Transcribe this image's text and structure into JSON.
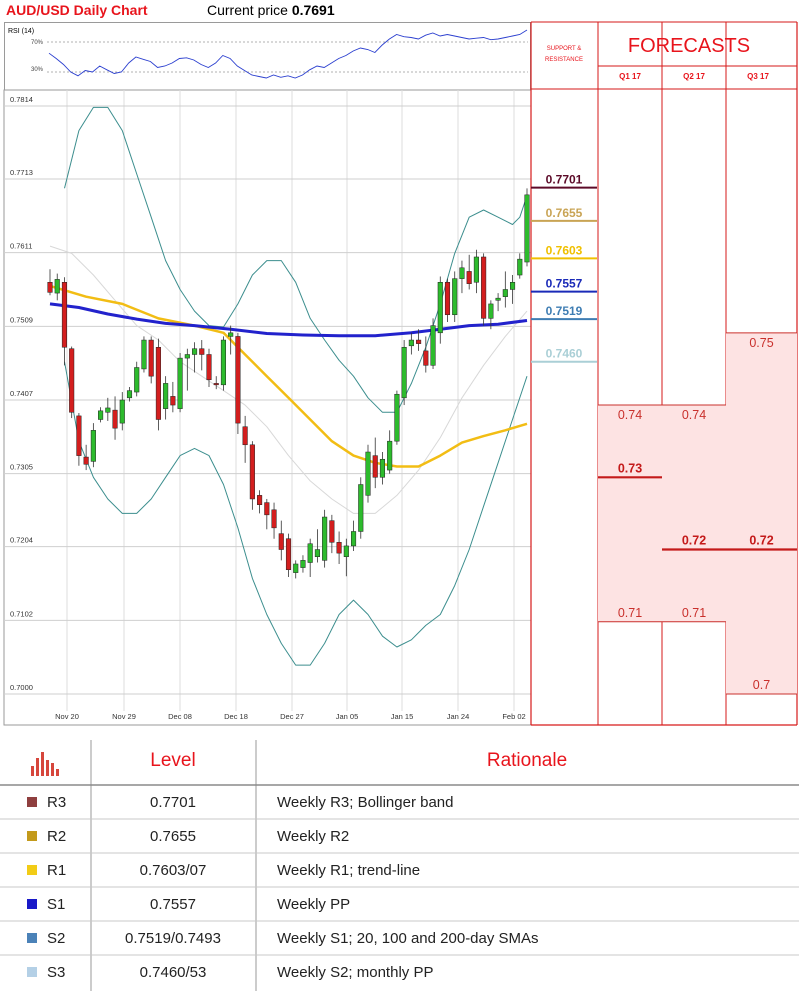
{
  "header": {
    "title": "AUD/USD Daily Chart",
    "price_label": "Current price",
    "price_value": "0.7691"
  },
  "rsi": {
    "label": "RSI (14)",
    "upper": "70%",
    "lower": "30%"
  },
  "chart_data": [
    {
      "type": "candlestick",
      "y_ticks": [
        "0.7814",
        "0.7713",
        "0.7611",
        "0.7509",
        "0.7407",
        "0.7305",
        "0.7204",
        "0.7102",
        "0.7000"
      ],
      "x_ticks": [
        "Nov 20",
        "Nov 29",
        "Dec 08",
        "Dec 18",
        "Dec 27",
        "Jan 05",
        "Jan 15",
        "Jan 24",
        "Feb 02"
      ],
      "ylim": [
        0.7,
        0.7814
      ],
      "candles": [
        {
          "o": 0.757,
          "h": 0.7588,
          "l": 0.7552,
          "c": 0.7556
        },
        {
          "o": 0.7555,
          "h": 0.7582,
          "l": 0.7545,
          "c": 0.7574
        },
        {
          "o": 0.757,
          "h": 0.7577,
          "l": 0.7455,
          "c": 0.748
        },
        {
          "o": 0.7478,
          "h": 0.7481,
          "l": 0.7382,
          "c": 0.739
        },
        {
          "o": 0.7385,
          "h": 0.7389,
          "l": 0.7316,
          "c": 0.733
        },
        {
          "o": 0.7328,
          "h": 0.7345,
          "l": 0.731,
          "c": 0.7318
        },
        {
          "o": 0.7322,
          "h": 0.7375,
          "l": 0.7314,
          "c": 0.7365
        },
        {
          "o": 0.738,
          "h": 0.7397,
          "l": 0.7376,
          "c": 0.7392
        },
        {
          "o": 0.739,
          "h": 0.741,
          "l": 0.7378,
          "c": 0.7396
        },
        {
          "o": 0.7393,
          "h": 0.7412,
          "l": 0.7352,
          "c": 0.7368
        },
        {
          "o": 0.7375,
          "h": 0.7418,
          "l": 0.7365,
          "c": 0.7407
        },
        {
          "o": 0.741,
          "h": 0.7425,
          "l": 0.7405,
          "c": 0.742
        },
        {
          "o": 0.7418,
          "h": 0.746,
          "l": 0.7412,
          "c": 0.7452
        },
        {
          "o": 0.745,
          "h": 0.7495,
          "l": 0.7445,
          "c": 0.749
        },
        {
          "o": 0.749,
          "h": 0.7495,
          "l": 0.743,
          "c": 0.744
        },
        {
          "o": 0.748,
          "h": 0.7492,
          "l": 0.7365,
          "c": 0.738
        },
        {
          "o": 0.7395,
          "h": 0.744,
          "l": 0.738,
          "c": 0.743
        },
        {
          "o": 0.7412,
          "h": 0.7432,
          "l": 0.739,
          "c": 0.74
        },
        {
          "o": 0.7395,
          "h": 0.7472,
          "l": 0.739,
          "c": 0.7465
        },
        {
          "o": 0.7465,
          "h": 0.7478,
          "l": 0.742,
          "c": 0.747
        },
        {
          "o": 0.747,
          "h": 0.7487,
          "l": 0.7445,
          "c": 0.7478
        },
        {
          "o": 0.7478,
          "h": 0.749,
          "l": 0.7448,
          "c": 0.747
        },
        {
          "o": 0.747,
          "h": 0.7478,
          "l": 0.7425,
          "c": 0.7435
        },
        {
          "o": 0.743,
          "h": 0.744,
          "l": 0.7422,
          "c": 0.7428
        },
        {
          "o": 0.7428,
          "h": 0.7495,
          "l": 0.742,
          "c": 0.749
        },
        {
          "o": 0.7495,
          "h": 0.751,
          "l": 0.747,
          "c": 0.75
        },
        {
          "o": 0.7495,
          "h": 0.75,
          "l": 0.736,
          "c": 0.7375
        },
        {
          "o": 0.737,
          "h": 0.7385,
          "l": 0.732,
          "c": 0.7345
        },
        {
          "o": 0.7345,
          "h": 0.735,
          "l": 0.7255,
          "c": 0.727
        },
        {
          "o": 0.7275,
          "h": 0.7282,
          "l": 0.725,
          "c": 0.7262
        },
        {
          "o": 0.7265,
          "h": 0.727,
          "l": 0.7228,
          "c": 0.7248
        },
        {
          "o": 0.7255,
          "h": 0.7265,
          "l": 0.7215,
          "c": 0.723
        },
        {
          "o": 0.7222,
          "h": 0.724,
          "l": 0.7185,
          "c": 0.72
        },
        {
          "o": 0.7215,
          "h": 0.7222,
          "l": 0.7162,
          "c": 0.7172
        },
        {
          "o": 0.7168,
          "h": 0.7185,
          "l": 0.716,
          "c": 0.718
        },
        {
          "o": 0.7175,
          "h": 0.7192,
          "l": 0.7168,
          "c": 0.7185
        },
        {
          "o": 0.7182,
          "h": 0.7215,
          "l": 0.7162,
          "c": 0.7208
        },
        {
          "o": 0.719,
          "h": 0.7228,
          "l": 0.7182,
          "c": 0.72
        },
        {
          "o": 0.7185,
          "h": 0.7255,
          "l": 0.7175,
          "c": 0.7245
        },
        {
          "o": 0.724,
          "h": 0.7248,
          "l": 0.7195,
          "c": 0.721
        },
        {
          "o": 0.721,
          "h": 0.7225,
          "l": 0.718,
          "c": 0.7195
        },
        {
          "o": 0.719,
          "h": 0.7215,
          "l": 0.7163,
          "c": 0.7205
        },
        {
          "o": 0.7205,
          "h": 0.724,
          "l": 0.7198,
          "c": 0.7225
        },
        {
          "o": 0.7225,
          "h": 0.73,
          "l": 0.7215,
          "c": 0.729
        },
        {
          "o": 0.7275,
          "h": 0.7345,
          "l": 0.7265,
          "c": 0.7335
        },
        {
          "o": 0.733,
          "h": 0.7355,
          "l": 0.7285,
          "c": 0.73
        },
        {
          "o": 0.73,
          "h": 0.7335,
          "l": 0.729,
          "c": 0.7325
        },
        {
          "o": 0.731,
          "h": 0.7365,
          "l": 0.7305,
          "c": 0.735
        },
        {
          "o": 0.735,
          "h": 0.742,
          "l": 0.7345,
          "c": 0.7415
        },
        {
          "o": 0.741,
          "h": 0.749,
          "l": 0.74,
          "c": 0.748
        },
        {
          "o": 0.7482,
          "h": 0.75,
          "l": 0.747,
          "c": 0.749
        },
        {
          "o": 0.749,
          "h": 0.7505,
          "l": 0.7475,
          "c": 0.7485
        },
        {
          "o": 0.7475,
          "h": 0.7495,
          "l": 0.7445,
          "c": 0.7455
        },
        {
          "o": 0.7455,
          "h": 0.752,
          "l": 0.745,
          "c": 0.751
        },
        {
          "o": 0.75,
          "h": 0.7578,
          "l": 0.7485,
          "c": 0.757
        },
        {
          "o": 0.757,
          "h": 0.7575,
          "l": 0.7515,
          "c": 0.7525
        },
        {
          "o": 0.7525,
          "h": 0.7585,
          "l": 0.7515,
          "c": 0.7575
        },
        {
          "o": 0.7575,
          "h": 0.76,
          "l": 0.7555,
          "c": 0.759
        },
        {
          "o": 0.7585,
          "h": 0.7608,
          "l": 0.756,
          "c": 0.7568
        },
        {
          "o": 0.757,
          "h": 0.7615,
          "l": 0.7555,
          "c": 0.7605
        },
        {
          "o": 0.7605,
          "h": 0.761,
          "l": 0.751,
          "c": 0.752
        },
        {
          "o": 0.752,
          "h": 0.7545,
          "l": 0.7505,
          "c": 0.754
        },
        {
          "o": 0.7545,
          "h": 0.7555,
          "l": 0.753,
          "c": 0.7548
        },
        {
          "o": 0.755,
          "h": 0.7585,
          "l": 0.7535,
          "c": 0.756
        },
        {
          "o": 0.756,
          "h": 0.758,
          "l": 0.754,
          "c": 0.757
        },
        {
          "o": 0.758,
          "h": 0.761,
          "l": 0.7575,
          "c": 0.7602
        },
        {
          "o": 0.7598,
          "h": 0.77,
          "l": 0.7592,
          "c": 0.7691
        }
      ],
      "sma_200": [
        [
          0,
          0.7565
        ],
        [
          5,
          0.755
        ],
        [
          10,
          0.754
        ],
        [
          15,
          0.752
        ],
        [
          20,
          0.751
        ],
        [
          24,
          0.75
        ],
        [
          27,
          0.747
        ],
        [
          30,
          0.744
        ],
        [
          33,
          0.741
        ],
        [
          36,
          0.738
        ],
        [
          39,
          0.735
        ],
        [
          42,
          0.733
        ],
        [
          45,
          0.732
        ],
        [
          48,
          0.7315
        ],
        [
          51,
          0.7315
        ],
        [
          54,
          0.733
        ],
        [
          57,
          0.7348
        ],
        [
          60,
          0.7357
        ],
        [
          63,
          0.7365
        ],
        [
          66,
          0.7374
        ]
      ],
      "sma_100": [
        [
          0,
          0.754
        ],
        [
          4,
          0.7535
        ],
        [
          8,
          0.7526
        ],
        [
          12,
          0.7519
        ],
        [
          16,
          0.7513
        ],
        [
          20,
          0.751
        ],
        [
          25,
          0.7505
        ],
        [
          30,
          0.7499
        ],
        [
          35,
          0.7497
        ],
        [
          40,
          0.7496
        ],
        [
          45,
          0.7496
        ],
        [
          50,
          0.75
        ],
        [
          54,
          0.7505
        ],
        [
          58,
          0.751
        ],
        [
          62,
          0.7512
        ],
        [
          66,
          0.7517
        ]
      ],
      "bollinger_upper": [
        [
          2,
          0.77
        ],
        [
          4,
          0.778
        ],
        [
          6,
          0.7812
        ],
        [
          8,
          0.7812
        ],
        [
          10,
          0.778
        ],
        [
          12,
          0.772
        ],
        [
          14,
          0.766
        ],
        [
          16,
          0.76
        ],
        [
          18,
          0.756
        ],
        [
          20,
          0.753
        ],
        [
          22,
          0.751
        ],
        [
          24,
          0.7508
        ],
        [
          26,
          0.754
        ],
        [
          28,
          0.758
        ],
        [
          30,
          0.76
        ],
        [
          32,
          0.76
        ],
        [
          34,
          0.757
        ],
        [
          36,
          0.752
        ],
        [
          38,
          0.749
        ],
        [
          40,
          0.7462
        ],
        [
          42,
          0.744
        ],
        [
          44,
          0.741
        ],
        [
          46,
          0.739
        ],
        [
          48,
          0.739
        ],
        [
          50,
          0.743
        ],
        [
          52,
          0.748
        ],
        [
          54,
          0.754
        ],
        [
          56,
          0.761
        ],
        [
          58,
          0.766
        ],
        [
          60,
          0.767
        ],
        [
          62,
          0.766
        ],
        [
          64,
          0.765
        ],
        [
          65,
          0.766
        ],
        [
          66,
          0.769
        ]
      ],
      "bollinger_lower": [
        [
          2,
          0.746
        ],
        [
          4,
          0.735
        ],
        [
          6,
          0.73
        ],
        [
          8,
          0.727
        ],
        [
          10,
          0.725
        ],
        [
          12,
          0.725
        ],
        [
          14,
          0.727
        ],
        [
          16,
          0.73
        ],
        [
          18,
          0.733
        ],
        [
          20,
          0.734
        ],
        [
          22,
          0.733
        ],
        [
          24,
          0.729
        ],
        [
          26,
          0.723
        ],
        [
          28,
          0.716
        ],
        [
          30,
          0.711
        ],
        [
          32,
          0.707
        ],
        [
          34,
          0.704
        ],
        [
          36,
          0.704
        ],
        [
          38,
          0.707
        ],
        [
          40,
          0.711
        ],
        [
          42,
          0.713
        ],
        [
          44,
          0.711
        ],
        [
          46,
          0.708
        ],
        [
          48,
          0.7065
        ],
        [
          50,
          0.7075
        ],
        [
          52,
          0.7095
        ],
        [
          54,
          0.711
        ],
        [
          56,
          0.715
        ],
        [
          58,
          0.72
        ],
        [
          60,
          0.726
        ],
        [
          62,
          0.732
        ],
        [
          64,
          0.738
        ],
        [
          66,
          0.744
        ]
      ],
      "sma_20": [
        [
          0,
          0.762
        ],
        [
          3,
          0.761
        ],
        [
          6,
          0.758
        ],
        [
          9,
          0.7545
        ],
        [
          12,
          0.751
        ],
        [
          15,
          0.749
        ],
        [
          18,
          0.746
        ],
        [
          21,
          0.744
        ],
        [
          24,
          0.742
        ],
        [
          27,
          0.74
        ],
        [
          30,
          0.737
        ],
        [
          33,
          0.733
        ],
        [
          36,
          0.7295
        ],
        [
          39,
          0.727
        ],
        [
          42,
          0.725
        ],
        [
          45,
          0.725
        ],
        [
          48,
          0.7275
        ],
        [
          51,
          0.731
        ],
        [
          54,
          0.7355
        ],
        [
          57,
          0.741
        ],
        [
          60,
          0.7455
        ],
        [
          63,
          0.7495
        ],
        [
          66,
          0.753
        ]
      ],
      "rsi_values": [
        0.55,
        0.48,
        0.4,
        0.3,
        0.25,
        0.32,
        0.3,
        0.38,
        0.33,
        0.28,
        0.3,
        0.42,
        0.5,
        0.47,
        0.44,
        0.36,
        0.38,
        0.42,
        0.48,
        0.49,
        0.46,
        0.4,
        0.36,
        0.42,
        0.52,
        0.48,
        0.38,
        0.32,
        0.26,
        0.24,
        0.22,
        0.26,
        0.23,
        0.25,
        0.22,
        0.26,
        0.33,
        0.38,
        0.36,
        0.42,
        0.48,
        0.52,
        0.58,
        0.62,
        0.6,
        0.56,
        0.66,
        0.74,
        0.8,
        0.77,
        0.76,
        0.74,
        0.79,
        0.82,
        0.78,
        0.8,
        0.78,
        0.76,
        0.74,
        0.75,
        0.76,
        0.73,
        0.74,
        0.76,
        0.78,
        0.8,
        0.86
      ]
    },
    {
      "type": "table",
      "title": "FORECASTS",
      "support_resistance_label": "SUPPORT & RESISTANCE",
      "columns": [
        "Q1 17",
        "Q2 17",
        "Q3 17"
      ],
      "levels": [
        {
          "label": "0.7701",
          "value": 0.7701,
          "color": "#5c0a28"
        },
        {
          "label": "0.7655",
          "value": 0.7655,
          "color": "#c9a455"
        },
        {
          "label": "0.7603",
          "value": 0.7603,
          "color": "#f0c000"
        },
        {
          "label": "0.7557",
          "value": 0.7557,
          "color": "#1a2ab8"
        },
        {
          "label": "0.7519",
          "value": 0.7519,
          "color": "#3e7db3"
        },
        {
          "label": "0.7460",
          "value": 0.746,
          "color": "#aacfd6"
        }
      ],
      "forecasts": [
        {
          "high": "0.74",
          "high_value": 0.74,
          "mid": "0.73",
          "mid_value": 0.73,
          "low": "0.71",
          "low_value": 0.71
        },
        {
          "high": "0.74",
          "high_value": 0.74,
          "mid": "0.72",
          "mid_value": 0.72,
          "low": "0.71",
          "low_value": 0.71
        },
        {
          "high": "0.75",
          "high_value": 0.75,
          "mid": "0.72",
          "mid_value": 0.72,
          "low": "0.7",
          "low_value": 0.7
        }
      ]
    }
  ],
  "table": {
    "header": {
      "level": "Level",
      "rationale": "Rationale"
    },
    "rows": [
      {
        "name": "R3",
        "level": "0.7701",
        "rationale": "Weekly R3; Bollinger band",
        "color": "#8f3f3f"
      },
      {
        "name": "R2",
        "level": "0.7655",
        "rationale": "Weekly R2",
        "color": "#c39a1b"
      },
      {
        "name": "R1",
        "level": "0.7603/07",
        "rationale": "Weekly R1; trend-line",
        "color": "#f2cc16"
      },
      {
        "name": "S1",
        "level": "0.7557",
        "rationale": "Weekly PP",
        "color": "#1919c8"
      },
      {
        "name": "S2",
        "level": "0.7519/0.7493",
        "rationale": "Weekly S1; 20, 100 and 200-day SMAs",
        "color": "#4b82b8"
      },
      {
        "name": "S3",
        "level": "0.7460/53",
        "rationale": "Weekly S2; monthly PP",
        "color": "#b4d0e6"
      }
    ]
  },
  "colors": {
    "accent_red": "#e8141c",
    "bull": "#2dbb2d",
    "bear": "#d31e1e",
    "sma_200": "#f2bd14",
    "sma_100": "#2222cc",
    "bollinger": "#3c8e8e",
    "forecast_fill": "#fde3e3"
  }
}
